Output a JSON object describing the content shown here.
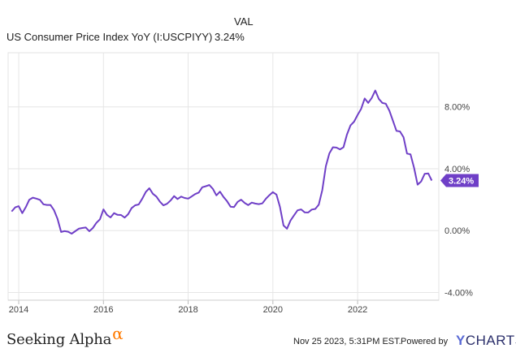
{
  "chart_data": {
    "type": "line",
    "legend": {
      "header": "VAL",
      "series_name": "US Consumer Price Index YoY (I:USCPIYY)",
      "series_value": "3.24%"
    },
    "series": [
      {
        "name": "US Consumer Price Index YoY (I:USCPIYY)",
        "color": "#6f3fc7",
        "x": [
          "2013-11",
          "2013-12",
          "2014-01",
          "2014-02",
          "2014-03",
          "2014-04",
          "2014-05",
          "2014-06",
          "2014-07",
          "2014-08",
          "2014-09",
          "2014-10",
          "2014-11",
          "2014-12",
          "2015-01",
          "2015-02",
          "2015-03",
          "2015-04",
          "2015-05",
          "2015-06",
          "2015-07",
          "2015-08",
          "2015-09",
          "2015-10",
          "2015-11",
          "2015-12",
          "2016-01",
          "2016-02",
          "2016-03",
          "2016-04",
          "2016-05",
          "2016-06",
          "2016-07",
          "2016-08",
          "2016-09",
          "2016-10",
          "2016-11",
          "2016-12",
          "2017-01",
          "2017-02",
          "2017-03",
          "2017-04",
          "2017-05",
          "2017-06",
          "2017-07",
          "2017-08",
          "2017-09",
          "2017-10",
          "2017-11",
          "2017-12",
          "2018-01",
          "2018-02",
          "2018-03",
          "2018-04",
          "2018-05",
          "2018-06",
          "2018-07",
          "2018-08",
          "2018-09",
          "2018-10",
          "2018-11",
          "2018-12",
          "2019-01",
          "2019-02",
          "2019-03",
          "2019-04",
          "2019-05",
          "2019-06",
          "2019-07",
          "2019-08",
          "2019-09",
          "2019-10",
          "2019-11",
          "2019-12",
          "2020-01",
          "2020-02",
          "2020-03",
          "2020-04",
          "2020-05",
          "2020-06",
          "2020-07",
          "2020-08",
          "2020-09",
          "2020-10",
          "2020-11",
          "2020-12",
          "2021-01",
          "2021-02",
          "2021-03",
          "2021-04",
          "2021-05",
          "2021-06",
          "2021-07",
          "2021-08",
          "2021-09",
          "2021-10",
          "2021-11",
          "2021-12",
          "2022-01",
          "2022-02",
          "2022-03",
          "2022-04",
          "2022-05",
          "2022-06",
          "2022-07",
          "2022-08",
          "2022-09",
          "2022-10",
          "2022-11",
          "2022-12",
          "2023-01",
          "2023-02",
          "2023-03",
          "2023-04",
          "2023-05",
          "2023-06",
          "2023-07",
          "2023-08",
          "2023-09",
          "2023-10"
        ],
        "values": [
          1.24,
          1.5,
          1.58,
          1.13,
          1.51,
          2.0,
          2.13,
          2.07,
          1.99,
          1.7,
          1.66,
          1.66,
          1.32,
          0.76,
          -0.09,
          -0.03,
          -0.07,
          -0.2,
          -0.04,
          0.12,
          0.17,
          0.2,
          -0.04,
          0.17,
          0.5,
          0.73,
          1.37,
          1.02,
          0.85,
          1.13,
          1.02,
          1.01,
          0.84,
          1.06,
          1.46,
          1.64,
          1.69,
          2.07,
          2.5,
          2.74,
          2.38,
          2.2,
          1.87,
          1.63,
          1.73,
          1.94,
          2.23,
          2.04,
          2.2,
          2.11,
          2.07,
          2.21,
          2.36,
          2.46,
          2.8,
          2.87,
          2.95,
          2.7,
          2.28,
          2.52,
          2.18,
          1.91,
          1.55,
          1.52,
          1.86,
          2.0,
          1.79,
          1.65,
          1.81,
          1.75,
          1.71,
          1.76,
          2.05,
          2.29,
          2.49,
          2.33,
          1.54,
          0.33,
          0.12,
          0.65,
          0.99,
          1.31,
          1.37,
          1.18,
          1.17,
          1.36,
          1.4,
          1.68,
          2.62,
          4.16,
          4.99,
          5.39,
          5.37,
          5.25,
          5.39,
          6.22,
          6.81,
          7.04,
          7.48,
          7.87,
          8.54,
          8.26,
          8.58,
          9.06,
          8.52,
          8.26,
          8.2,
          7.75,
          7.11,
          6.45,
          6.41,
          6.04,
          4.98,
          4.93,
          4.05,
          2.97,
          3.18,
          3.67,
          3.7,
          3.24
        ]
      }
    ],
    "y_ticks": [
      "8.00%",
      "4.00%",
      "0.00%",
      "-4.00%"
    ],
    "y_tick_values": [
      8,
      4,
      0,
      -4
    ],
    "x_ticks": [
      "2014",
      "2016",
      "2018",
      "2020",
      "2022"
    ],
    "x_tick_dates": [
      "2014-01",
      "2016-01",
      "2018-01",
      "2020-01",
      "2022-01"
    ],
    "ylim": [
      -4.5,
      11.5
    ],
    "xlim": [
      "2013-10",
      "2023-12"
    ],
    "last_value_label": "3.24%",
    "grid": "horizontal and vertical",
    "legend_position": "top-left"
  },
  "footer": {
    "brand": "Seeking Alpha",
    "brand_symbol": "α",
    "timestamp": "Nov 25 2023, 5:31PM EST.",
    "powered_by": "Powered by",
    "provider_y": "Y",
    "provider_rest": "CHARTS"
  }
}
